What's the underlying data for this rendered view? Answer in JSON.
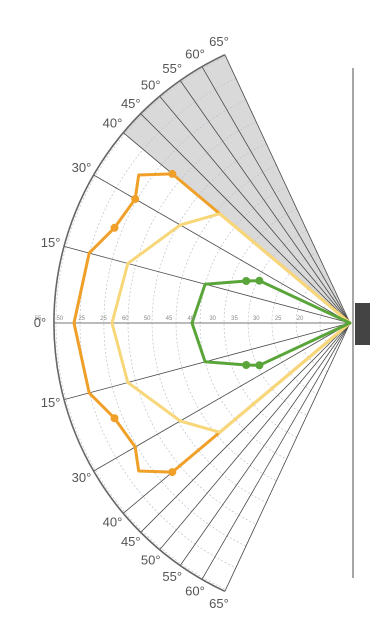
{
  "diagram": {
    "angle_labels": [
      "65°",
      "60°",
      "55°",
      "50°",
      "45°",
      "40°",
      "30°",
      "15°",
      "0°",
      "15°",
      "30°",
      "40°",
      "45°",
      "50°",
      "55°",
      "60°",
      "65°"
    ],
    "angles": [
      -65,
      -60,
      -55,
      -50,
      -45,
      -40,
      -30,
      -15,
      0,
      15,
      30,
      40,
      45,
      50,
      55,
      60,
      65
    ],
    "ring_labels": [
      "55",
      "50",
      "25",
      "25",
      "60",
      "50",
      "45",
      "40",
      "30",
      "35",
      "30",
      "25",
      "20"
    ],
    "shaded_sector": {
      "from_angle": -65,
      "to_angle": -40
    },
    "colors": {
      "orange": "#f0a028",
      "light_yellow": "#f7d77a",
      "green": "#5aa53a",
      "shade": "#d9d9d9",
      "speaker": "#444444"
    },
    "icons": [
      "speaker-icon"
    ],
    "curves": [
      {
        "color": "orange",
        "polar": [
          [
            -40,
            232
          ],
          [
            -35,
            258
          ],
          [
            -30,
            248
          ],
          [
            -22,
            254
          ],
          [
            -15,
            270
          ],
          [
            0,
            276
          ],
          [
            15,
            270
          ],
          [
            22,
            254
          ],
          [
            30,
            248
          ],
          [
            35,
            258
          ],
          [
            40,
            232
          ]
        ],
        "markers": [
          -40,
          -30,
          -22,
          22,
          40
        ]
      },
      {
        "color": "light_yellow",
        "polar": [
          [
            -40,
            170
          ],
          [
            -30,
            196
          ],
          [
            -15,
            230
          ],
          [
            0,
            238
          ],
          [
            15,
            230
          ],
          [
            30,
            196
          ],
          [
            40,
            170
          ]
        ],
        "markers": []
      },
      {
        "color": "green",
        "polar": [
          [
            -25,
            100
          ],
          [
            -22,
            112
          ],
          [
            -15,
            150
          ],
          [
            0,
            158
          ],
          [
            15,
            150
          ],
          [
            22,
            112
          ],
          [
            25,
            100
          ]
        ],
        "markers": [
          -25,
          -22,
          22,
          25
        ]
      }
    ]
  }
}
